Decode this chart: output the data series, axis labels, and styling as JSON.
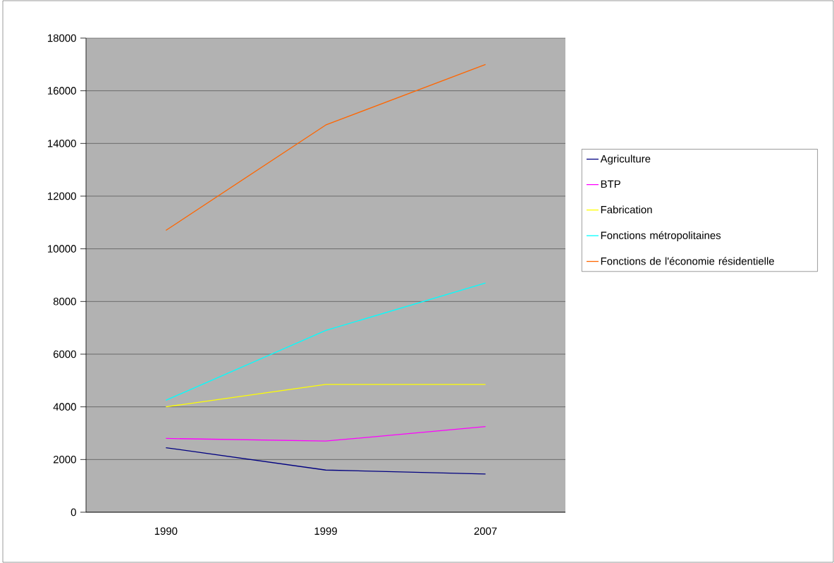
{
  "chart_data": {
    "type": "line",
    "categories": [
      "1990",
      "1999",
      "2007"
    ],
    "series": [
      {
        "name": "Agriculture",
        "color": "#000080",
        "values": [
          2450,
          1600,
          1450
        ]
      },
      {
        "name": "BTP",
        "color": "#ff00ff",
        "values": [
          2800,
          2700,
          3250
        ]
      },
      {
        "name": "Fabrication",
        "color": "#ffff00",
        "values": [
          4000,
          4850,
          4850
        ]
      },
      {
        "name": "Fonctions métropolitaines",
        "color": "#00ffff",
        "values": [
          4250,
          6900,
          8700
        ]
      },
      {
        "name": "Fonctions de l'économie résidentielle",
        "color": "#ff6600",
        "values": [
          10700,
          14700,
          17000
        ]
      }
    ],
    "ylim": [
      0,
      18000
    ],
    "yticks": [
      0,
      2000,
      4000,
      6000,
      8000,
      10000,
      12000,
      14000,
      16000,
      18000
    ],
    "grid": "y",
    "legend": "right",
    "marker": "none",
    "line_style": "solid"
  }
}
